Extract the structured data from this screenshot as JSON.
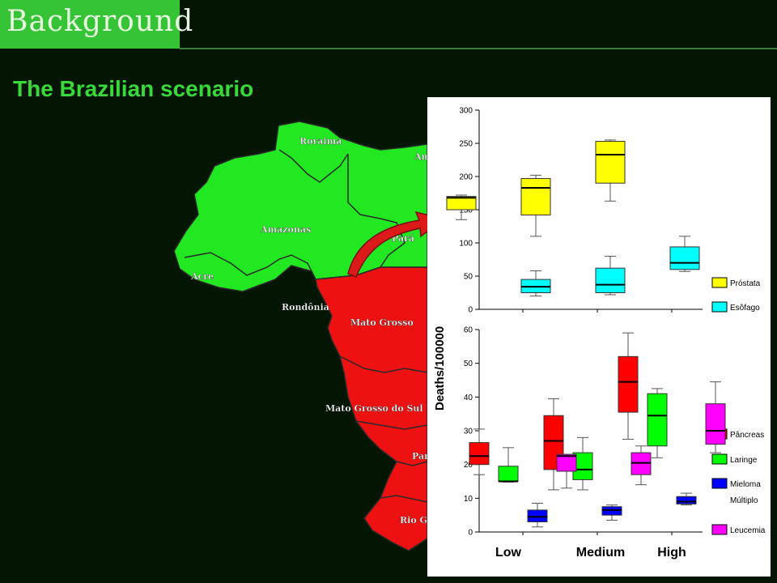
{
  "header": {
    "tag": "Background",
    "subtitle": "The Brazilian scenario"
  },
  "map": {
    "colors": {
      "green": "#22e822",
      "red": "#ee1111",
      "border": "#2a2a2a"
    },
    "states": [
      "Roraima",
      "Am",
      "Amazonas",
      "Pará",
      "Acre",
      "Rondônia",
      "Mato Grosso",
      "Mato Grosso do Sul",
      "Pará",
      "Rio Gr"
    ]
  },
  "chart_data": [
    {
      "type": "box",
      "ylim": [
        0,
        300
      ],
      "yticks": [
        0,
        50,
        100,
        150,
        200,
        250,
        300
      ],
      "categories": [
        "Low",
        "Medium",
        "High"
      ],
      "series": [
        {
          "name": "Próstata",
          "color": "#ffff00",
          "boxes": [
            [
              135,
              150,
              168,
              170,
              172
            ],
            [
              110,
              142,
              183,
              197,
              202
            ],
            [
              163,
              190,
              233,
              253,
              255
            ]
          ]
        },
        {
          "name": "Esôfago",
          "color": "#00ffff",
          "boxes": [
            [
              20,
              25,
              34,
              45,
              58
            ],
            [
              22,
              25,
              37,
              62,
              80
            ],
            [
              57,
              60,
              70,
              94,
              110
            ]
          ]
        }
      ]
    },
    {
      "type": "box",
      "ylim": [
        0,
        60
      ],
      "yticks": [
        0,
        10,
        20,
        30,
        40,
        50,
        60
      ],
      "categories": [
        "Low",
        "Medium",
        "High"
      ],
      "series": [
        {
          "name": "Pâncreas",
          "color": "#ff0000",
          "boxes": [
            [
              17,
              20,
              22.5,
              26.5,
              30.5
            ],
            [
              12.5,
              18.5,
              27,
              34.5,
              39.5
            ],
            [
              27.5,
              35.5,
              44.5,
              52,
              59
            ]
          ]
        },
        {
          "name": "Laringe",
          "color": "#00ff00",
          "boxes": [
            [
              14.8,
              15,
              15,
              19.5,
              25
            ],
            [
              12.5,
              15.5,
              18.5,
              23.5,
              28
            ],
            [
              22,
              25.5,
              34.5,
              41,
              42.5
            ]
          ]
        },
        {
          "name": "Mieloma",
          "legend_second_line": "Múltiplo",
          "color": "#0000ff",
          "boxes": [
            [
              1.5,
              3,
              4.5,
              6.5,
              8.5
            ],
            [
              3.5,
              5,
              6.5,
              7.5,
              8
            ],
            [
              8,
              8.3,
              9,
              10.5,
              11.5
            ]
          ]
        },
        {
          "name": "Leucemia",
          "color": "#ff00ff",
          "boxes": [
            [
              13,
              18,
              22.5,
              23,
              23
            ],
            [
              14,
              17,
              20.5,
              23.5,
              25.5
            ],
            [
              23.5,
              26,
              30,
              38,
              44.5
            ]
          ]
        }
      ]
    }
  ],
  "axis": {
    "ylabel": "Deaths/100000",
    "categories": [
      "Low",
      "Medium",
      "High"
    ]
  }
}
